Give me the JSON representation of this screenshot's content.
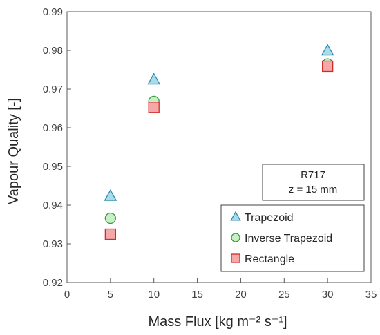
{
  "chart_data": {
    "type": "scatter",
    "title": "",
    "xlabel": "Mass Flux [kg m⁻² s⁻¹]",
    "ylabel": "Vapour Quality [-]",
    "xlim": [
      0,
      35
    ],
    "ylim": [
      0.92,
      0.99
    ],
    "xticks": [
      "0",
      "5",
      "10",
      "15",
      "20",
      "25",
      "30",
      "35"
    ],
    "yticks": [
      "0.92",
      "0.93",
      "0.94",
      "0.95",
      "0.96",
      "0.97",
      "0.98",
      "0.99"
    ],
    "grid": false,
    "legend_position": "bottom-right",
    "annotation": [
      "R717",
      "z = 15 mm"
    ],
    "series": [
      {
        "name": "Trapezoid",
        "marker": "triangle",
        "fill": "#a8dcea",
        "stroke": "#2a8db0",
        "x": [
          5,
          10,
          30
        ],
        "y": [
          0.9423,
          0.9724,
          0.9799
        ]
      },
      {
        "name": "Inverse Trapezoid",
        "marker": "circle",
        "fill": "#c6efc6",
        "stroke": "#3a9c3a",
        "x": [
          5,
          10,
          30
        ],
        "y": [
          0.9366,
          0.9668,
          0.9765
        ]
      },
      {
        "name": "Rectangle",
        "marker": "square",
        "fill": "#f4a8a8",
        "stroke": "#d22b2b",
        "x": [
          5,
          10,
          30
        ],
        "y": [
          0.9325,
          0.9653,
          0.9759
        ]
      }
    ]
  }
}
